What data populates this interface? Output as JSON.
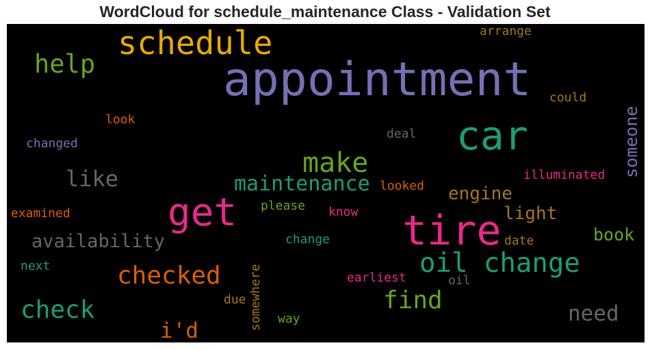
{
  "title": "WordCloud for schedule_maintenance Class - Validation Set",
  "words": {
    "appointment": {
      "text": "appointment",
      "color": "#7570b3"
    },
    "schedule": {
      "text": "schedule",
      "color": "#e6ab02"
    },
    "car": {
      "text": "car",
      "color": "#1b9e77"
    },
    "tire": {
      "text": "tire",
      "color": "#e7298a"
    },
    "get": {
      "text": "get",
      "color": "#e7298a"
    },
    "oil_change": {
      "text": "oil change",
      "color": "#1b9e77"
    },
    "make": {
      "text": "make",
      "color": "#66a61e"
    },
    "help": {
      "text": "help",
      "color": "#66a61e"
    },
    "maintenance": {
      "text": "maintenance",
      "color": "#1b9e77"
    },
    "checked": {
      "text": "checked",
      "color": "#d95f02"
    },
    "check": {
      "text": "check",
      "color": "#1b9e77"
    },
    "find": {
      "text": "find",
      "color": "#66a61e"
    },
    "like": {
      "text": "like",
      "color": "#666666"
    },
    "availability": {
      "text": "availability",
      "color": "#666666"
    },
    "need": {
      "text": "need",
      "color": "#666666"
    },
    "id": {
      "text": "i'd",
      "color": "#d95f02"
    },
    "engine": {
      "text": "engine",
      "color": "#a6761d"
    },
    "light": {
      "text": "light",
      "color": "#a6761d"
    },
    "book": {
      "text": "book",
      "color": "#66a61e"
    },
    "someone": {
      "text": "someone",
      "color": "#7570b3"
    },
    "arrange": {
      "text": "arrange",
      "color": "#a6761d"
    },
    "could": {
      "text": "could",
      "color": "#a6761d"
    },
    "look": {
      "text": "look",
      "color": "#d95f02"
    },
    "changed": {
      "text": "changed",
      "color": "#7570b3"
    },
    "deal": {
      "text": "deal",
      "color": "#666666"
    },
    "illuminated": {
      "text": "illuminated",
      "color": "#e7298a"
    },
    "looked": {
      "text": "looked",
      "color": "#d95f02"
    },
    "please": {
      "text": "please",
      "color": "#66a61e"
    },
    "know": {
      "text": "know",
      "color": "#e7298a"
    },
    "examined": {
      "text": "examined",
      "color": "#d95f02"
    },
    "change": {
      "text": "change",
      "color": "#1b9e77"
    },
    "date": {
      "text": "date",
      "color": "#a6761d"
    },
    "next": {
      "text": "next",
      "color": "#1b9e77"
    },
    "earliest": {
      "text": "earliest",
      "color": "#e7298a"
    },
    "oil": {
      "text": "oil",
      "color": "#666666"
    },
    "due": {
      "text": "due",
      "color": "#a6761d"
    },
    "somewhere": {
      "text": "somewhere",
      "color": "#a6761d"
    },
    "way": {
      "text": "way",
      "color": "#66a61e"
    }
  }
}
